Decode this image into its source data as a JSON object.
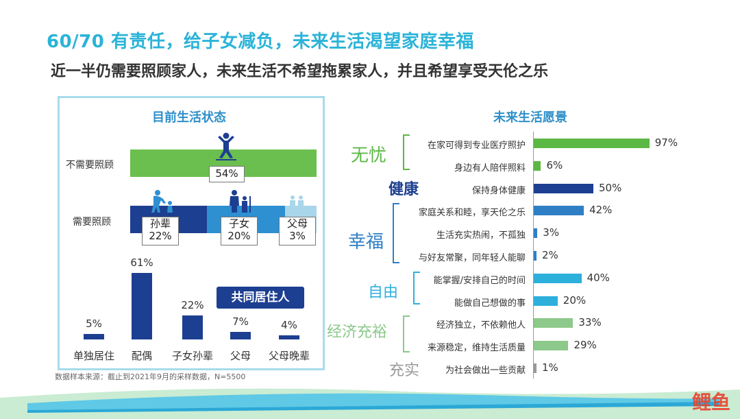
{
  "header": {
    "title": "60/70 有责任，给子女减负，未来生活渴望家庭幸福",
    "subtitle": "近一半仍需要照顾家人，未来生活不希望拖累家人，并且希望享受天伦之乐"
  },
  "left": {
    "panel_title": "目前生活状态",
    "no_care": {
      "label": "不需要照顾",
      "value": "54%",
      "color": "#6bbf4e"
    },
    "care": {
      "label": "需要照顾",
      "segments": [
        {
          "name": "孙辈",
          "value": "22%",
          "pct": 22,
          "color": "#1d3f91"
        },
        {
          "name": "子女",
          "value": "20%",
          "pct": 20,
          "color": "#2e8fd1"
        },
        {
          "name": "父母",
          "value": "3%",
          "pct": 3,
          "color": "#a9d6ea"
        }
      ]
    },
    "cohabit_badge": "共同居住人",
    "source": "数据样本来源：截止到2021年9月的采样数据，N=5500"
  },
  "right": {
    "panel_title": "未来生活愿景",
    "groups": [
      {
        "name": "无忧",
        "color": "#5cb845"
      },
      {
        "name": "健康",
        "color": "#1d3f91"
      },
      {
        "name": "幸福",
        "color": "#2e7fc4"
      },
      {
        "name": "自由",
        "color": "#2eb0dc"
      },
      {
        "name": "经济充裕",
        "color": "#8cc98a"
      },
      {
        "name": "充实",
        "color": "#999999"
      }
    ]
  },
  "chart_data": [
    {
      "type": "bar",
      "title": "",
      "categories": [
        "单独居住",
        "配偶",
        "子女孙辈",
        "父母",
        "父母晚辈"
      ],
      "values": [
        5,
        61,
        22,
        7,
        4
      ],
      "labels": [
        "5%",
        "61%",
        "22%",
        "7%",
        "4%"
      ],
      "ylim": [
        0,
        61
      ],
      "color": "#1d3f91"
    },
    {
      "type": "bar",
      "orientation": "horizontal",
      "title": "",
      "categories": [
        "在家可得到专业医疗照护",
        "身边有人陪伴照料",
        "保持身体健康",
        "家庭关系和睦，享天伦之乐",
        "生活充实热闹，不孤独",
        "与好友常聚，同年轻人能聊",
        "能掌握/安排自己的时间",
        "能做自己想做的事",
        "经济独立，不依赖他人",
        "来源稳定，维持生活质量",
        "为社会做出一些贡献"
      ],
      "values": [
        97,
        6,
        50,
        42,
        3,
        2,
        40,
        20,
        33,
        29,
        1
      ],
      "labels": [
        "97%",
        "6%",
        "50%",
        "42%",
        "3%",
        "2%",
        "40%",
        "20%",
        "33%",
        "29%",
        "1%"
      ],
      "colors": [
        "#5cb845",
        "#5cb845",
        "#1d3f91",
        "#2e7fc4",
        "#2e7fc4",
        "#2e7fc4",
        "#2eb0dc",
        "#2eb0dc",
        "#8cc98a",
        "#8cc98a",
        "#999999"
      ],
      "xlim": [
        0,
        100
      ]
    }
  ],
  "logo_text": "鲤鱼"
}
